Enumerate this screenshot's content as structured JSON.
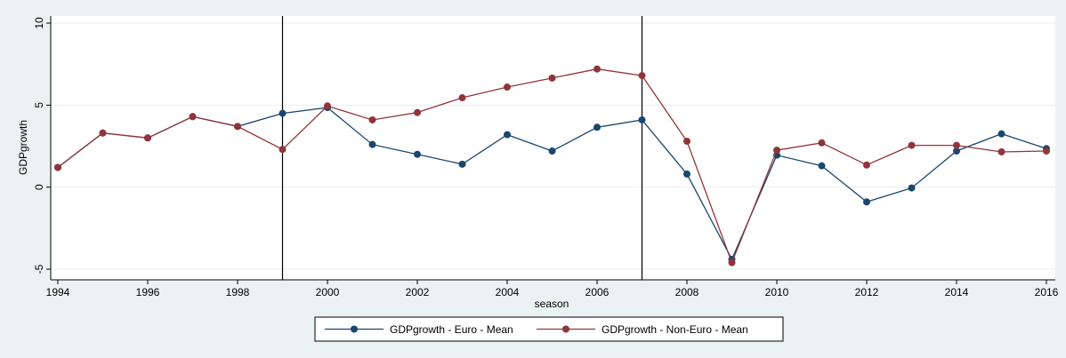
{
  "chart_data": {
    "type": "line",
    "title": "",
    "xlabel": "season",
    "ylabel": "GDPgrowth",
    "xlim": [
      1994,
      2016
    ],
    "ylim": [
      -5,
      10
    ],
    "x_ticks": [
      1994,
      1996,
      1998,
      2000,
      2002,
      2004,
      2006,
      2008,
      2010,
      2012,
      2014,
      2016
    ],
    "y_ticks": [
      -5,
      0,
      5,
      10
    ],
    "grid": "horizontal",
    "legend_position": "bottom",
    "vertical_lines": [
      1999,
      2007
    ],
    "x": [
      1994,
      1995,
      1996,
      1997,
      1998,
      1999,
      2000,
      2001,
      2002,
      2003,
      2004,
      2005,
      2006,
      2007,
      2008,
      2009,
      2010,
      2011,
      2012,
      2013,
      2014,
      2015,
      2016
    ],
    "series": [
      {
        "name": "GDPgrowth - Euro - Mean",
        "color": "#1a476f",
        "values": [
          1.2,
          3.3,
          3.0,
          4.3,
          3.7,
          4.5,
          4.85,
          2.6,
          2.0,
          1.4,
          3.2,
          2.2,
          3.65,
          4.1,
          0.8,
          -4.4,
          1.95,
          1.3,
          -0.9,
          -0.05,
          2.2,
          3.25,
          2.35
        ]
      },
      {
        "name": "GDPgrowth - Non-Euro - Mean",
        "color": "#90353b",
        "values": [
          1.2,
          3.3,
          3.0,
          4.3,
          3.7,
          2.3,
          4.95,
          4.1,
          4.55,
          5.45,
          6.1,
          6.65,
          7.2,
          6.8,
          2.8,
          -4.6,
          2.25,
          2.7,
          1.35,
          2.55,
          2.55,
          2.15,
          2.2
        ]
      }
    ]
  }
}
